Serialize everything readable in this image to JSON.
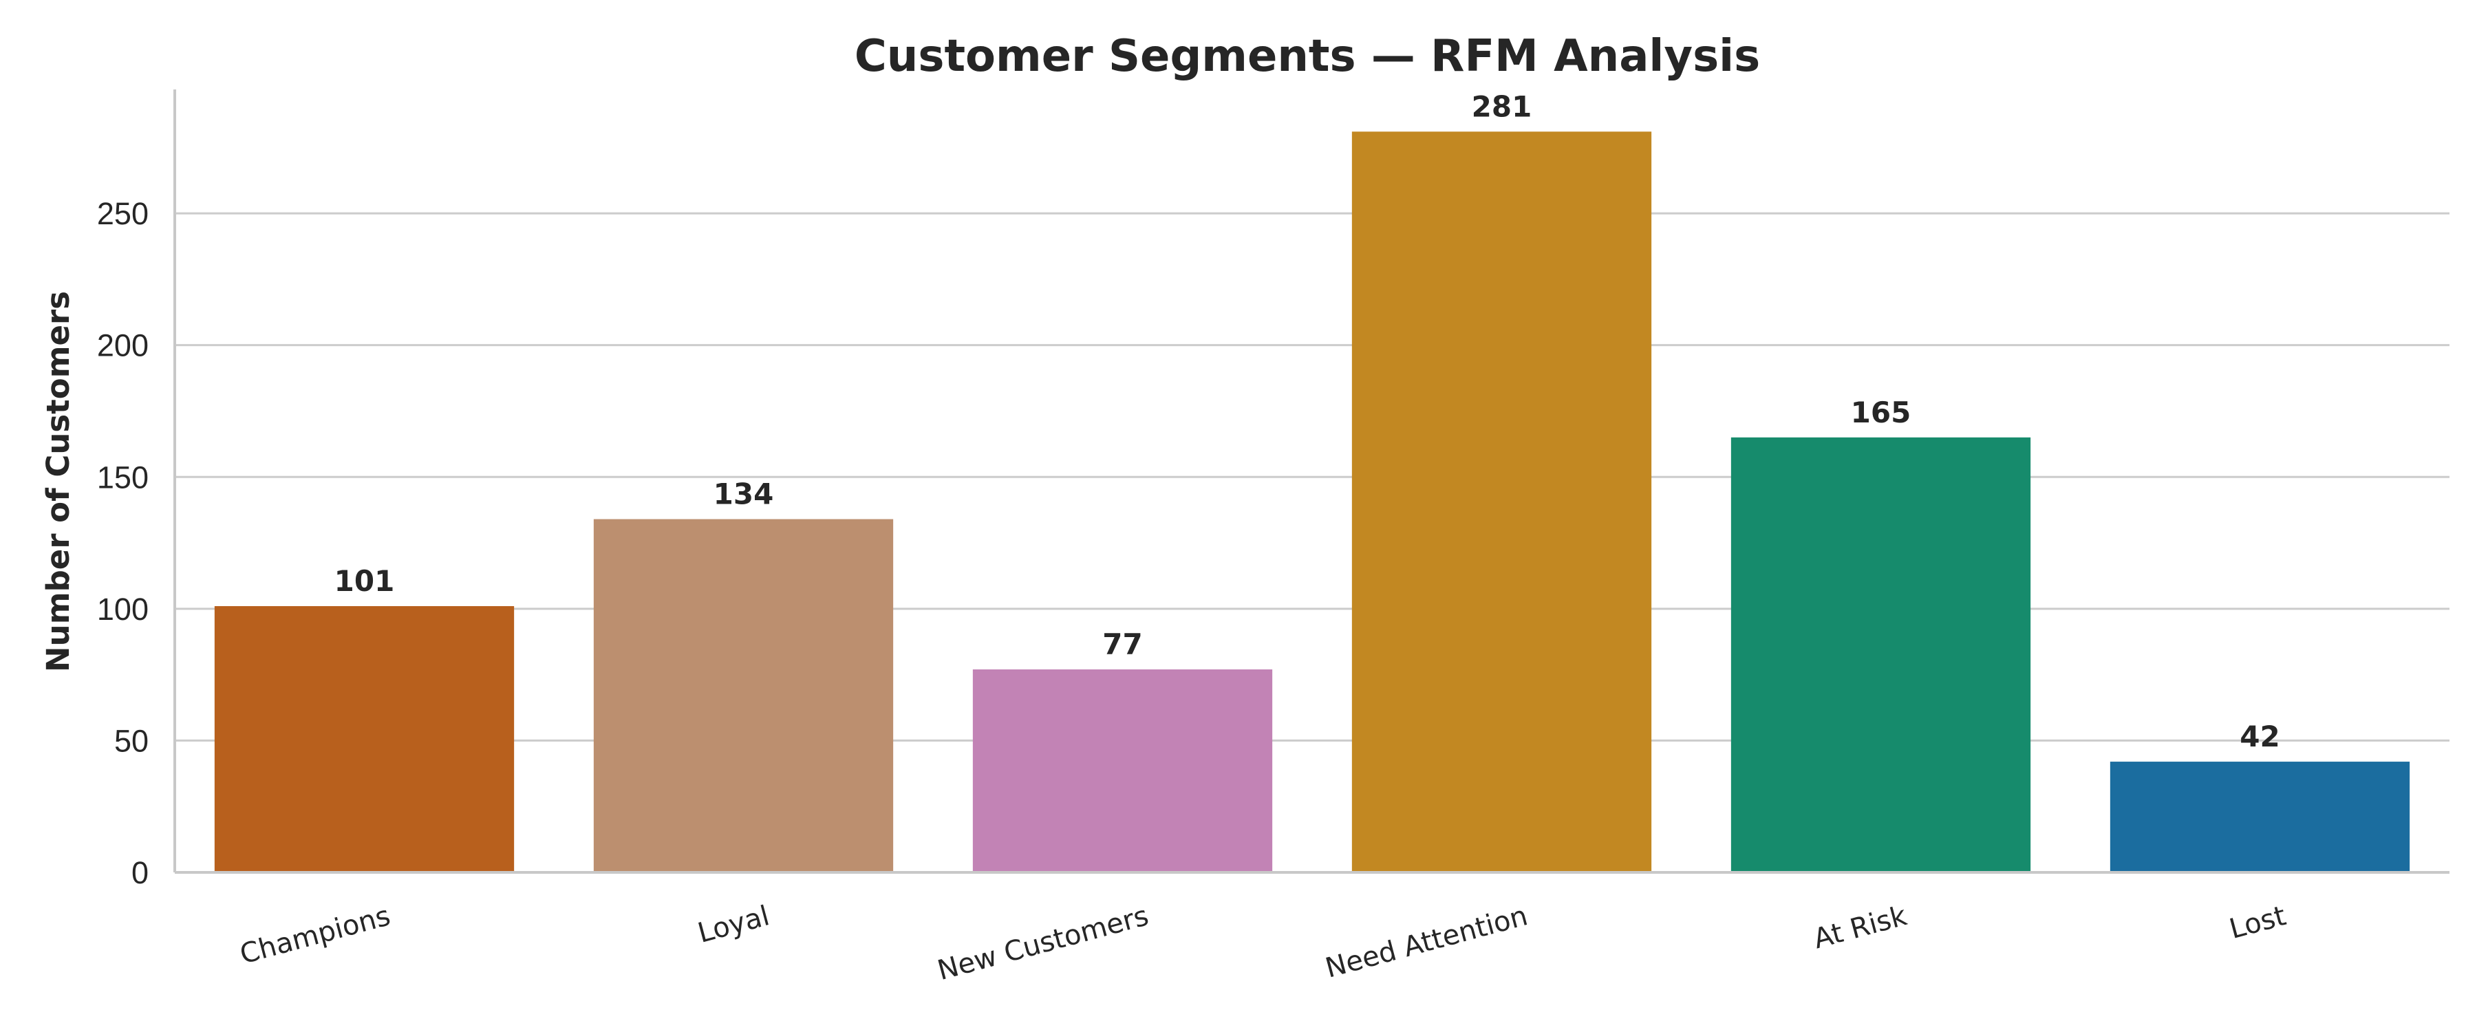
{
  "chart_data": {
    "type": "bar",
    "title": "Customer Segments — RFM Analysis",
    "xlabel": "",
    "ylabel": "Number of Customers",
    "categories": [
      "Champions",
      "Loyal",
      "New Customers",
      "Need Attention",
      "At Risk",
      "Lost"
    ],
    "values": [
      101,
      134,
      77,
      281,
      165,
      42
    ],
    "colors": [
      "#b8601d",
      "#bc8f6f",
      "#c283b5",
      "#c28822",
      "#168b6c",
      "#1b6d9f"
    ],
    "ylim": [
      0,
      297
    ],
    "yticks": [
      0,
      50,
      100,
      150,
      200,
      250
    ],
    "grid": true,
    "legend": "none"
  }
}
